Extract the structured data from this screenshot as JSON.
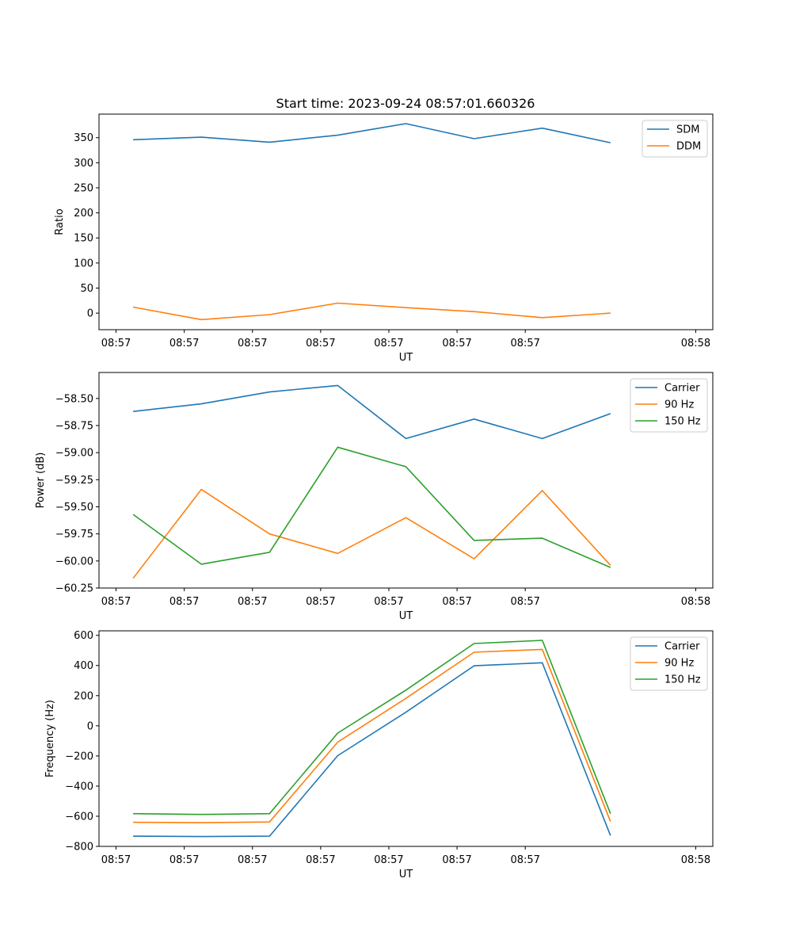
{
  "figure": {
    "title": "Start time: 2023-09-24 08:57:01.660326"
  },
  "chart_data": [
    {
      "type": "line",
      "title": "Start time: 2023-09-24 08:57:01.660326",
      "xlabel": "UT",
      "ylabel": "Ratio",
      "x_tick_labels": [
        "08:57",
        "08:57",
        "08:57",
        "08:57",
        "08:57",
        "08:57",
        "08:57"
      ],
      "x_last_tick_label": "08:58",
      "xlim": [
        -0.5,
        8.5
      ],
      "ylim": [
        -33,
        397
      ],
      "y_ticks": [
        0,
        50,
        100,
        150,
        200,
        250,
        300,
        350
      ],
      "y_tick_labels": [
        "0",
        "50",
        "100",
        "150",
        "200",
        "250",
        "300",
        "350"
      ],
      "x": [
        0,
        1,
        2,
        3,
        4,
        5,
        6,
        7
      ],
      "legend_position": "upper right",
      "series": [
        {
          "name": "SDM",
          "color": "#1f77b4",
          "values": [
            346,
            351,
            341,
            355,
            378,
            348,
            369,
            340
          ]
        },
        {
          "name": "DDM",
          "color": "#ff7f0e",
          "values": [
            12,
            -13,
            -3,
            20,
            11,
            3,
            -9,
            0
          ]
        }
      ]
    },
    {
      "type": "line",
      "title": "",
      "xlabel": "UT",
      "ylabel": "Power (dB)",
      "x_tick_labels": [
        "08:57",
        "08:57",
        "08:57",
        "08:57",
        "08:57",
        "08:57",
        "08:57"
      ],
      "x_last_tick_label": "08:58",
      "xlim": [
        -0.5,
        8.5
      ],
      "ylim": [
        -60.25,
        -58.26
      ],
      "y_ticks": [
        -60.25,
        -60.0,
        -59.75,
        -59.5,
        -59.25,
        -59.0,
        -58.75,
        -58.5
      ],
      "y_tick_labels": [
        "−60.25",
        "−60.00",
        "−59.75",
        "−59.50",
        "−59.25",
        "−59.00",
        "−58.75",
        "−58.50"
      ],
      "x": [
        0,
        1,
        2,
        3,
        4,
        5,
        6,
        7
      ],
      "legend_position": "upper right",
      "series": [
        {
          "name": "Carrier",
          "color": "#1f77b4",
          "values": [
            -58.62,
            -58.55,
            -58.44,
            -58.38,
            -58.87,
            -58.69,
            -58.87,
            -58.64
          ]
        },
        {
          "name": "90 Hz",
          "color": "#ff7f0e",
          "values": [
            -60.16,
            -59.34,
            -59.75,
            -59.93,
            -59.6,
            -59.98,
            -59.35,
            -60.04
          ]
        },
        {
          "name": "150 Hz",
          "color": "#2ca02c",
          "values": [
            -59.57,
            -60.03,
            -59.92,
            -58.95,
            -59.13,
            -59.81,
            -59.79,
            -60.06
          ]
        }
      ]
    },
    {
      "type": "line",
      "title": "",
      "xlabel": "UT",
      "ylabel": "Frequency (Hz)",
      "x_tick_labels": [
        "08:57",
        "08:57",
        "08:57",
        "08:57",
        "08:57",
        "08:57",
        "08:57"
      ],
      "x_last_tick_label": "08:58",
      "xlim": [
        -0.5,
        8.5
      ],
      "ylim": [
        -800,
        630
      ],
      "y_ticks": [
        -800,
        -600,
        -400,
        -200,
        0,
        200,
        400,
        600
      ],
      "y_tick_labels": [
        "−800",
        "−600",
        "−400",
        "−200",
        "0",
        "200",
        "400",
        "600"
      ],
      "x": [
        0,
        1,
        2,
        3,
        4,
        5,
        6,
        7
      ],
      "legend_position": "upper right",
      "series": [
        {
          "name": "Carrier",
          "color": "#1f77b4",
          "values": [
            -732,
            -735,
            -732,
            -198,
            90,
            398,
            418,
            -728
          ]
        },
        {
          "name": "90 Hz",
          "color": "#ff7f0e",
          "values": [
            -640,
            -643,
            -638,
            -108,
            182,
            488,
            507,
            -635
          ]
        },
        {
          "name": "150 Hz",
          "color": "#2ca02c",
          "values": [
            -583,
            -588,
            -583,
            -48,
            237,
            546,
            567,
            -583
          ]
        }
      ]
    }
  ]
}
